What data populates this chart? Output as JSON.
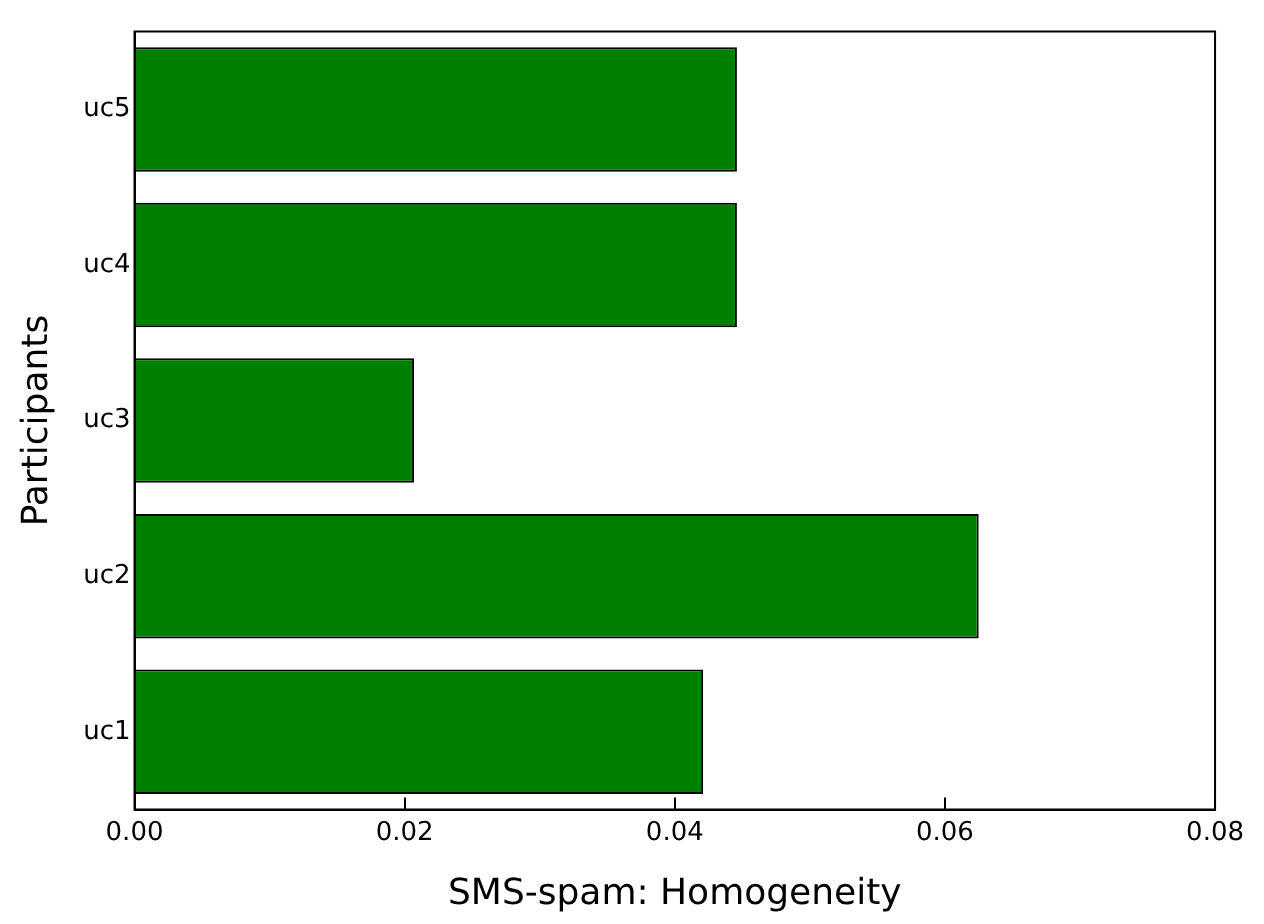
{
  "chart_data": {
    "type": "bar",
    "orientation": "horizontal",
    "xlabel": "SMS-spam: Homogeneity",
    "ylabel": "Participants",
    "categories": [
      "uc5",
      "uc4",
      "uc3",
      "uc2",
      "uc1"
    ],
    "values": [
      0.0446,
      0.0446,
      0.0207,
      0.0625,
      0.0421
    ],
    "color": "#008000",
    "xlim": [
      0,
      0.08
    ],
    "xticks": [
      {
        "value": 0,
        "label": "0.00"
      },
      {
        "value": 0.02,
        "label": "0.02"
      },
      {
        "value": 0.04,
        "label": "0.04"
      },
      {
        "value": 0.06,
        "label": "0.06"
      },
      {
        "value": 0.08,
        "label": "0.08"
      }
    ],
    "grid": false,
    "legend": false
  }
}
